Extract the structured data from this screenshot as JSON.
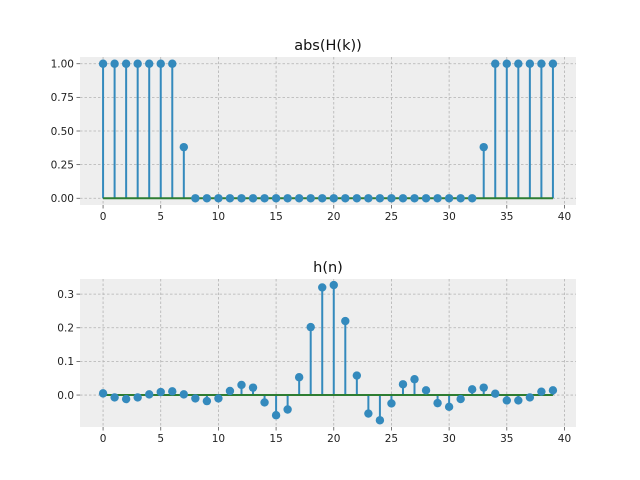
{
  "chart_data": [
    {
      "type": "stem",
      "title": "abs(H(k))",
      "x": [
        0,
        1,
        2,
        3,
        4,
        5,
        6,
        7,
        8,
        9,
        10,
        11,
        12,
        13,
        14,
        15,
        16,
        17,
        18,
        19,
        20,
        21,
        22,
        23,
        24,
        25,
        26,
        27,
        28,
        29,
        30,
        31,
        32,
        33,
        34,
        35,
        36,
        37,
        38,
        39
      ],
      "y": [
        1,
        1,
        1,
        1,
        1,
        1,
        1,
        0.38,
        0,
        0,
        0,
        0,
        0,
        0,
        0,
        0,
        0,
        0,
        0,
        0,
        0,
        0,
        0,
        0,
        0,
        0,
        0,
        0,
        0,
        0,
        0,
        0,
        0,
        0.38,
        1,
        1,
        1,
        1,
        1,
        1
      ],
      "xlim": [
        -2,
        41
      ],
      "ylim": [
        -0.05,
        1.05
      ],
      "xticks": [
        0,
        5,
        10,
        15,
        20,
        25,
        30,
        35,
        40
      ],
      "yticks": [
        "0.00",
        "0.25",
        "0.50",
        "0.75",
        "1.00"
      ],
      "grid": true,
      "colors": {
        "stem": "#348ABD",
        "marker": "#348ABD",
        "baseline": "#2E7D32",
        "axes_bg": "#EEEEEE",
        "grid": "#B2B2B2"
      }
    },
    {
      "type": "stem",
      "title": "h(n)",
      "x": [
        0,
        1,
        2,
        3,
        4,
        5,
        6,
        7,
        8,
        9,
        10,
        11,
        12,
        13,
        14,
        15,
        16,
        17,
        18,
        19,
        20,
        21,
        22,
        23,
        24,
        25,
        26,
        27,
        28,
        29,
        30,
        31,
        32,
        33,
        34,
        35,
        36,
        37,
        38,
        39
      ],
      "y": [
        0.005,
        -0.007,
        -0.012,
        -0.007,
        0.002,
        0.009,
        0.011,
        0.002,
        -0.01,
        -0.018,
        -0.01,
        0.012,
        0.03,
        0.022,
        -0.022,
        -0.06,
        -0.043,
        0.053,
        0.202,
        0.32,
        0.327,
        0.22,
        0.058,
        -0.055,
        -0.075,
        -0.025,
        0.032,
        0.047,
        0.014,
        -0.024,
        -0.035,
        -0.012,
        0.017,
        0.022,
        0.004,
        -0.016,
        -0.016,
        -0.007,
        0.01,
        0.014
      ],
      "xlim": [
        -2,
        41
      ],
      "ylim": [
        -0.095,
        0.345
      ],
      "xticks": [
        0,
        5,
        10,
        15,
        20,
        25,
        30,
        35,
        40
      ],
      "yticks": [
        "0.0",
        "0.1",
        "0.2",
        "0.3"
      ],
      "grid": true,
      "colors": {
        "stem": "#348ABD",
        "marker": "#348ABD",
        "baseline": "#2E7D32",
        "axes_bg": "#EEEEEE",
        "grid": "#B2B2B2"
      }
    }
  ]
}
